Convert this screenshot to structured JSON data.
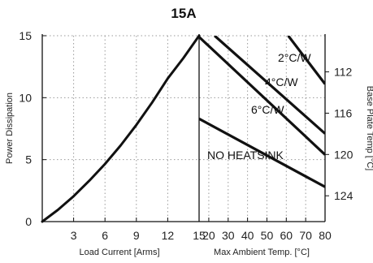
{
  "chart_data": {
    "type": "line",
    "title": "15A",
    "colors": {
      "line": "#111111",
      "grid": "#9a9a9a",
      "axis": "#111111",
      "text": "#222222"
    },
    "grid": true,
    "left_panel": {
      "xlabel": "Load Current  [Arms]",
      "ylabel": "Power Dissipation",
      "xlim": [
        0,
        15
      ],
      "ylim": [
        0,
        15
      ],
      "x_ticks": [
        3,
        6,
        9,
        12,
        15
      ],
      "y_ticks": [
        0,
        5,
        10,
        15
      ],
      "series": [
        {
          "x": [
            0,
            1.5,
            3,
            4.5,
            6,
            7.5,
            9,
            10.5,
            12,
            13.5,
            15
          ],
          "y": [
            0,
            0.95,
            2.05,
            3.3,
            4.65,
            6.15,
            7.8,
            9.6,
            11.55,
            13.2,
            15.0
          ]
        }
      ]
    },
    "right_panel": {
      "xlabel": "Max Ambient Temp. [°C]",
      "ylabel": "Base Plate Temp [°C]",
      "xlim": [
        15,
        80
      ],
      "x_ticks": [
        20,
        30,
        40,
        50,
        60,
        70,
        80
      ],
      "y_tick_labels": [
        "112",
        "116",
        "120",
        "124"
      ],
      "y_tick_values": [
        112,
        116,
        120,
        124
      ],
      "secondary_ylim": [
        108.5,
        126.5
      ],
      "series": [
        {
          "name": "2°C/W",
          "x": [
            61,
            80
          ],
          "y": [
            15,
            11.1
          ]
        },
        {
          "name": "4°C/W",
          "x": [
            23,
            80
          ],
          "y": [
            15,
            7.1
          ]
        },
        {
          "name": "6°C/W",
          "x": [
            15,
            80
          ],
          "y": [
            14.9,
            5.4
          ]
        },
        {
          "name": "NO HEATSINK",
          "x": [
            15,
            80
          ],
          "y": [
            8.3,
            2.8
          ]
        }
      ]
    }
  }
}
